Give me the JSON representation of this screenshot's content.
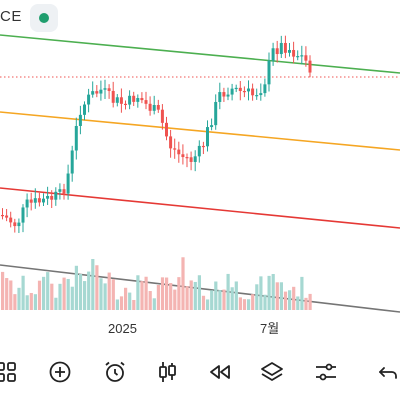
{
  "header": {
    "symbol_fragment": "CE",
    "status_icon": "green-dot-icon",
    "status_color": "#1f9e6e"
  },
  "chart_data": {
    "type": "candlestick",
    "x_labels": [
      "2025",
      "7월"
    ],
    "colors": {
      "up": "#26a69a",
      "down": "#ef5350",
      "volume_up": "#a6d8d2",
      "volume_down": "#f4b4b2",
      "current_price_line": "#ef5350"
    },
    "trendlines": [
      {
        "name": "",
        "color": "#4caf50"
      },
      {
        "name": "",
        "color": "#f5a623"
      },
      {
        "name": "",
        "color": "#e53935"
      },
      {
        "name": "",
        "color": "#757575"
      }
    ]
  },
  "toolbar": {
    "items": [
      {
        "icon": "grid-icon"
      },
      {
        "icon": "plus-circle-icon"
      },
      {
        "icon": "alarm-clock-icon"
      },
      {
        "icon": "candlestick-icon"
      },
      {
        "icon": "rewind-icon"
      },
      {
        "icon": "layers-icon"
      },
      {
        "icon": "sliders-icon"
      },
      {
        "icon": "undo-icon"
      }
    ]
  }
}
